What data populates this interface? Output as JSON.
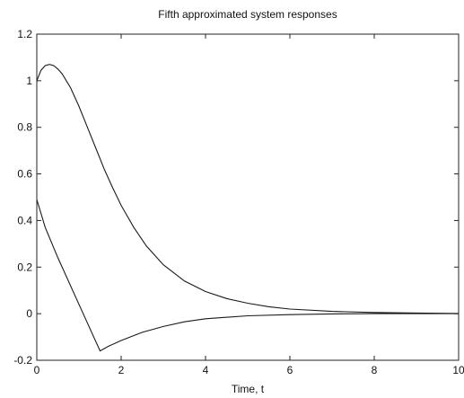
{
  "chart_data": {
    "type": "line",
    "title": "Fifth approximated system responses",
    "xlabel": "Time, t",
    "ylabel": "",
    "xlim": [
      0,
      10
    ],
    "ylim": [
      -0.2,
      1.2
    ],
    "xticks": [
      "0",
      "2",
      "4",
      "6",
      "8",
      "10"
    ],
    "yticks": [
      "-0.2",
      "0",
      "0.2",
      "0.4",
      "0.6",
      "0.8",
      "1",
      "1.2"
    ],
    "grid": false,
    "series": [
      {
        "x": [
          0,
          0.1,
          0.2,
          0.3,
          0.4,
          0.5,
          0.6,
          0.8,
          1.0,
          1.2,
          1.4,
          1.6,
          1.8,
          2.0,
          2.3,
          2.6,
          3.0,
          3.5,
          4.0,
          4.5,
          5.0,
          5.5,
          6.0,
          7.0,
          8.0,
          9.0,
          10.0
        ],
        "y": [
          1.0,
          1.045,
          1.065,
          1.07,
          1.065,
          1.05,
          1.03,
          0.97,
          0.89,
          0.8,
          0.71,
          0.62,
          0.54,
          0.465,
          0.37,
          0.29,
          0.21,
          0.14,
          0.095,
          0.065,
          0.045,
          0.03,
          0.02,
          0.01,
          0.005,
          0.003,
          0.001
        ]
      },
      {
        "x": [
          0,
          0.2,
          0.5,
          1.0,
          1.5,
          1.7,
          2.0,
          2.5,
          3.0,
          3.5,
          4.0,
          5.0,
          6.0,
          7.0,
          8.0,
          10.0
        ],
        "y": [
          0.49,
          0.37,
          0.24,
          0.04,
          -0.16,
          -0.14,
          -0.115,
          -0.08,
          -0.055,
          -0.035,
          -0.022,
          -0.009,
          -0.004,
          -0.001,
          0.0,
          0.0
        ]
      }
    ]
  }
}
